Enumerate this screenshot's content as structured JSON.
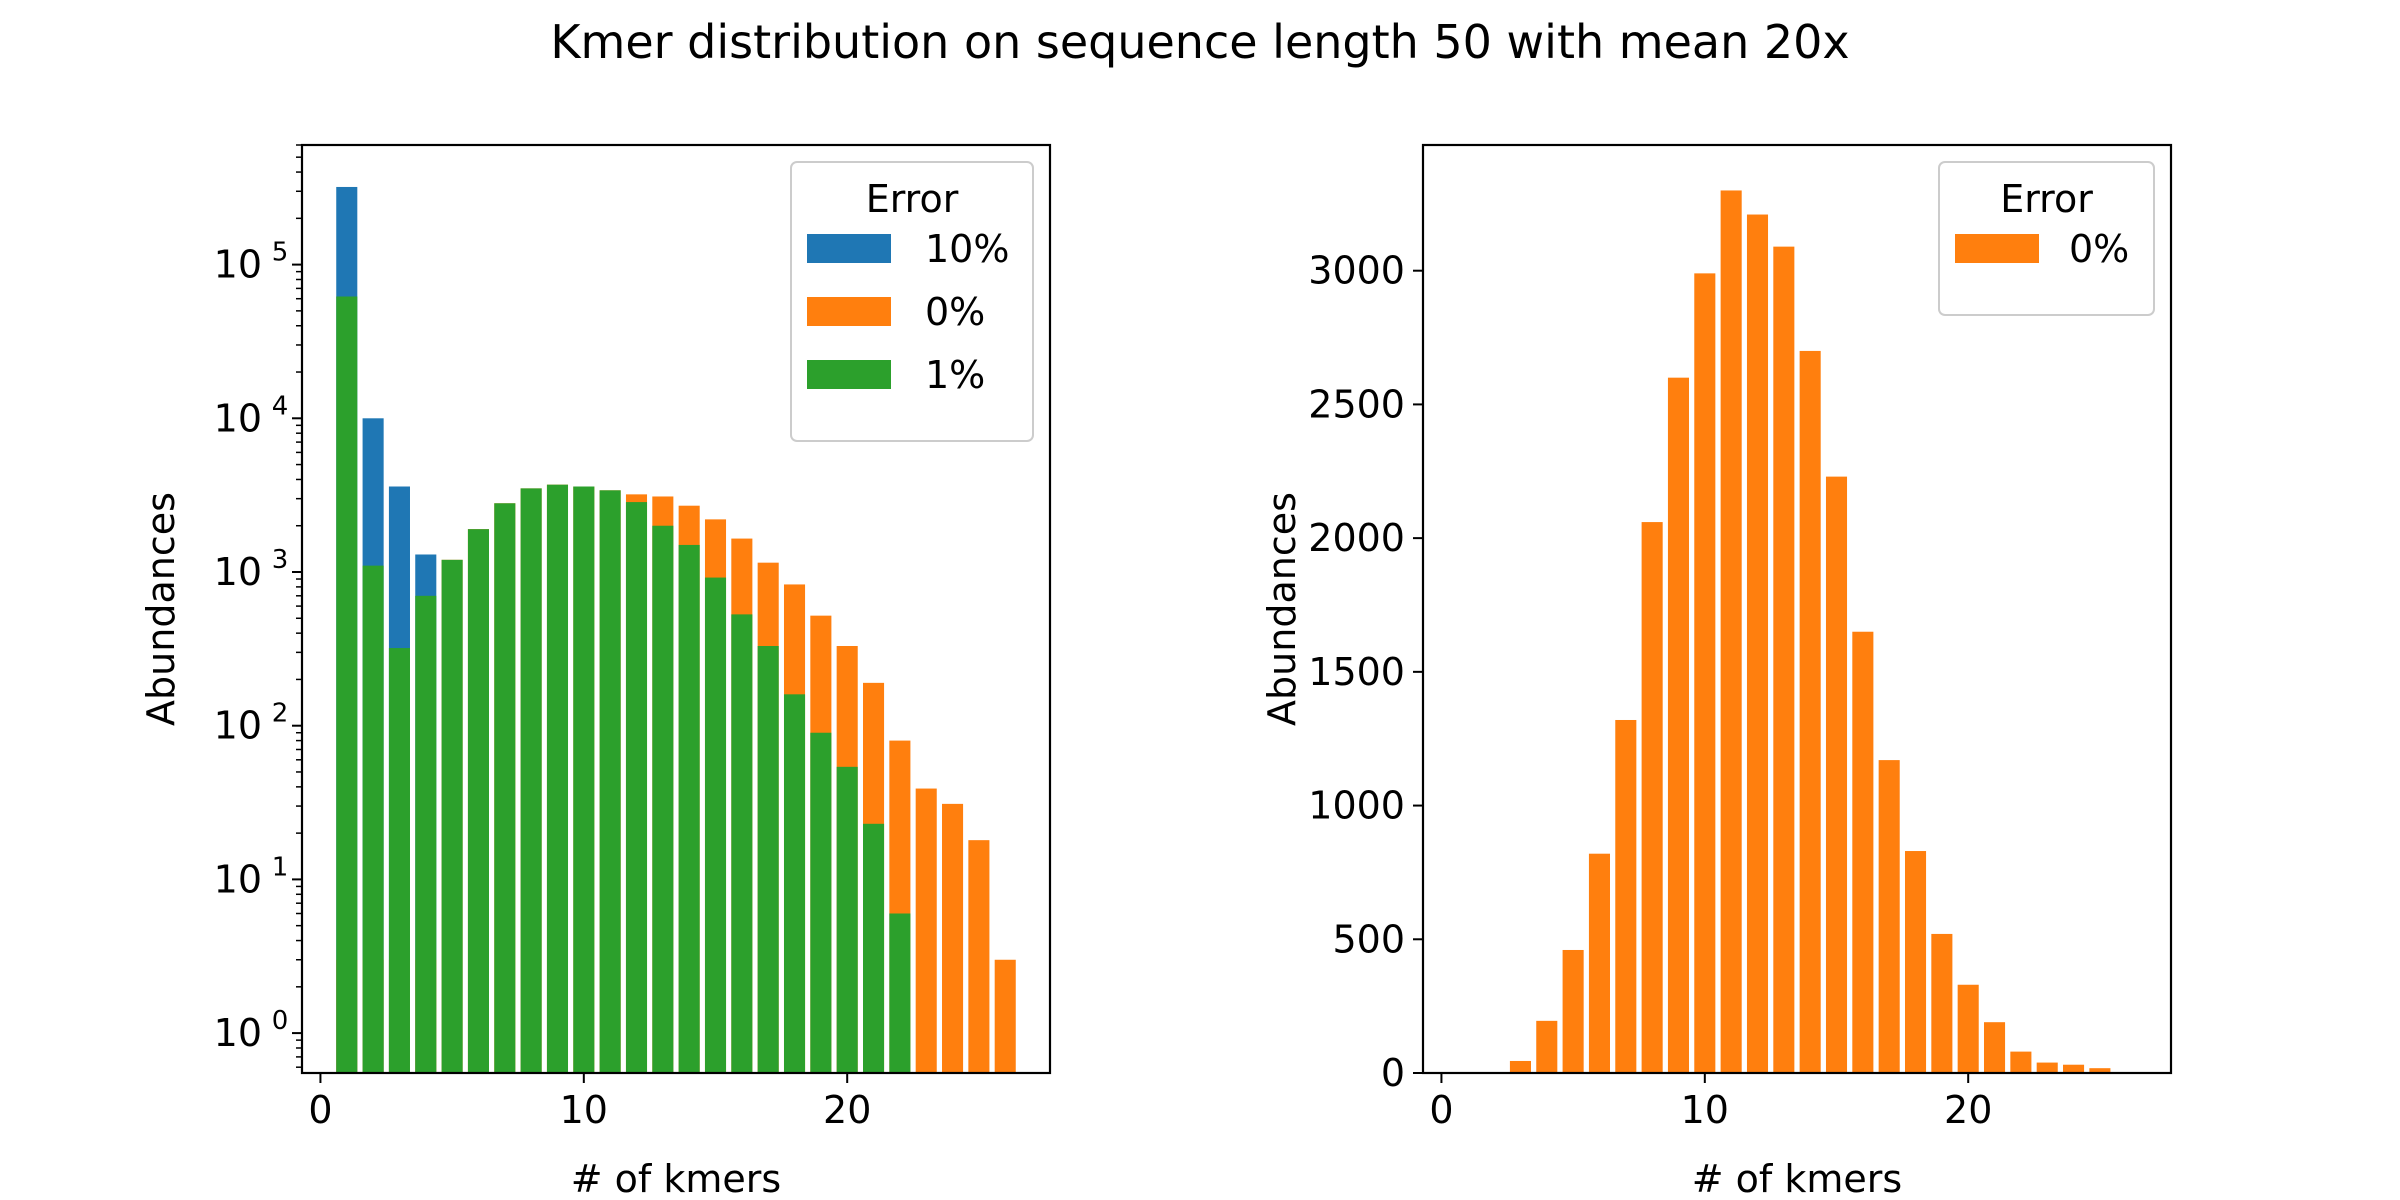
{
  "figure": {
    "title": "Kmer distribution on sequence length 50 with mean 20x"
  },
  "colors": {
    "10%": "#1f77b4",
    "0%": "#ff7f0e",
    "1%": "#2ca02c"
  },
  "chart_data": [
    {
      "type": "bar",
      "yscale": "log",
      "xlabel": "# of kmers",
      "ylabel": "Abundances",
      "xlim": [
        -0.7,
        27.7
      ],
      "ylim": [
        0.55,
        600000
      ],
      "xticks": [
        0,
        10,
        20
      ],
      "yticks": [
        {
          "value": 1,
          "base": "10",
          "exp": "0"
        },
        {
          "value": 10,
          "base": "10",
          "exp": "1"
        },
        {
          "value": 100,
          "base": "10",
          "exp": "2"
        },
        {
          "value": 1000,
          "base": "10",
          "exp": "3"
        },
        {
          "value": 10000,
          "base": "10",
          "exp": "4"
        },
        {
          "value": 100000,
          "base": "10",
          "exp": "5"
        }
      ],
      "grid": false,
      "legend": {
        "title": "Error",
        "placement": "upper right",
        "entries": [
          "10%",
          "0%",
          "1%"
        ]
      },
      "series": [
        {
          "name": "10%",
          "x": [
            1,
            2,
            3,
            4
          ],
          "values": [
            320000,
            10000,
            3600,
            1300
          ]
        },
        {
          "name": "0%",
          "x": [
            1,
            2,
            3,
            4,
            5,
            6,
            7,
            8,
            9,
            10,
            11,
            12,
            13,
            14,
            15,
            16,
            17,
            18,
            19,
            20,
            21,
            22,
            23,
            24,
            25,
            26
          ],
          "values": [
            3,
            3,
            3,
            3,
            1200,
            1900,
            2800,
            3500,
            3700,
            3600,
            3400,
            3200,
            3100,
            2700,
            2200,
            1650,
            1150,
            830,
            520,
            330,
            190,
            80,
            39,
            31,
            18,
            3
          ]
        },
        {
          "name": "1%",
          "x": [
            1,
            2,
            3,
            4,
            5,
            6,
            7,
            8,
            9,
            10,
            11,
            12,
            13,
            14,
            15,
            16,
            17,
            18,
            19,
            20,
            21,
            22
          ],
          "values": [
            62000,
            1100,
            320,
            700,
            1200,
            1900,
            2800,
            3500,
            3700,
            3600,
            3400,
            2850,
            2000,
            1500,
            920,
            530,
            330,
            160,
            90,
            54,
            23,
            6
          ]
        }
      ]
    },
    {
      "type": "bar",
      "yscale": "linear",
      "xlabel": "# of kmers",
      "ylabel": "Abundances",
      "xlim": [
        -0.7,
        27.7
      ],
      "ylim": [
        0,
        3470
      ],
      "xticks": [
        0,
        10,
        20
      ],
      "yticks": [
        0,
        500,
        1000,
        1500,
        2000,
        2500,
        3000
      ],
      "grid": false,
      "legend": {
        "title": "Error",
        "placement": "upper right",
        "entries": [
          "0%"
        ]
      },
      "series": [
        {
          "name": "0%",
          "x": [
            1,
            2,
            3,
            4,
            5,
            6,
            7,
            8,
            9,
            10,
            11,
            12,
            13,
            14,
            15,
            16,
            17,
            18,
            19,
            20,
            21,
            22,
            23,
            24,
            25
          ],
          "values": [
            3,
            3,
            45,
            195,
            460,
            820,
            1320,
            2060,
            2600,
            2990,
            3300,
            3210,
            3090,
            2700,
            2230,
            1650,
            1170,
            830,
            520,
            330,
            190,
            80,
            39,
            31,
            18
          ]
        }
      ]
    }
  ]
}
